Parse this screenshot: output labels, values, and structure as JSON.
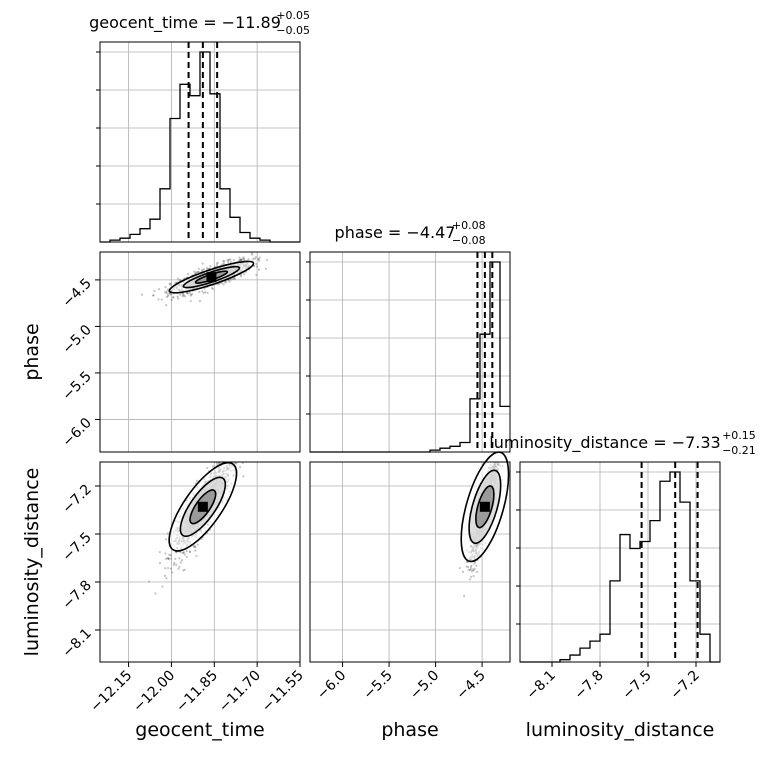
{
  "chart_data": {
    "type": "corner",
    "parameters": [
      {
        "name": "geocent_time",
        "range": [
          -12.25,
          -11.55
        ],
        "ticks": [
          "-12.15",
          "-12.00",
          "-11.85",
          "-11.70",
          "-11.55"
        ],
        "title": {
          "base": "geocent_time = −11.89",
          "sup": "+0.05",
          "sub": "−0.05"
        }
      },
      {
        "name": "phase",
        "range": [
          -6.35,
          -4.2
        ],
        "ticks": [
          "-6.0",
          "-5.5",
          "-5.0",
          "-4.5"
        ],
        "title": {
          "base": "phase = −4.47",
          "sup": "+0.08",
          "sub": "−0.08"
        }
      },
      {
        "name": "luminosity_distance",
        "range": [
          -8.3,
          -7.05
        ],
        "ticks": [
          "-8.1",
          "-7.8",
          "-7.5",
          "-7.2"
        ],
        "title": {
          "base": "luminosity_distance = −7.33",
          "sup": "+0.15",
          "sub": "−0.21"
        }
      }
    ],
    "tick_labels": {
      "geocent_time": [
        "−12.15",
        "−12.00",
        "−11.85",
        "−11.70",
        "−11.55"
      ],
      "phase": [
        "−6.0",
        "−5.5",
        "−5.0",
        "−4.5"
      ],
      "luminosity_distance": [
        "−8.1",
        "−7.8",
        "−7.5",
        "−7.2"
      ]
    },
    "axis_labels": {
      "x": [
        "geocent_time",
        "phase",
        "luminosity_distance"
      ],
      "y": [
        "phase",
        "luminosity_distance"
      ]
    },
    "histograms": [
      {
        "param": "geocent_time",
        "edges_start": -12.25,
        "bin_width": 0.035,
        "counts": [
          0,
          1,
          2,
          4,
          7,
          12,
          28,
          65,
          83,
          77,
          100,
          78,
          28,
          13,
          5,
          2,
          1,
          0,
          0,
          0
        ],
        "quantiles": [
          -11.94,
          -11.89,
          -11.84
        ]
      },
      {
        "param": "phase",
        "edges_start": -6.35,
        "bin_width": 0.1075,
        "counts": [
          0,
          0,
          0,
          0,
          0,
          0,
          0,
          0,
          0,
          0,
          0,
          0,
          1,
          2,
          3,
          5,
          28,
          62,
          100,
          24
        ],
        "quantiles": [
          -4.55,
          -4.47,
          -4.39
        ]
      },
      {
        "param": "luminosity_distance",
        "edges_start": -8.3,
        "bin_width": 0.0625,
        "counts": [
          0,
          0,
          0,
          0,
          1,
          3,
          6,
          9,
          12,
          35,
          55,
          49,
          52,
          61,
          78,
          82,
          69,
          35,
          12,
          0
        ],
        "quantiles": [
          -7.54,
          -7.33,
          -7.19
        ]
      }
    ],
    "scatter_2d": [
      {
        "x": "geocent_time",
        "y": "phase",
        "center": [
          -11.86,
          -4.47
        ],
        "spread": [
          0.07,
          0.09
        ],
        "corr": 0.8
      },
      {
        "x": "geocent_time",
        "y": "luminosity_distance",
        "center": [
          -11.89,
          -7.33
        ],
        "spread": [
          0.05,
          0.15
        ],
        "corr": 0.85
      },
      {
        "x": "phase",
        "y": "luminosity_distance",
        "center": [
          -4.47,
          -7.33
        ],
        "spread": [
          0.08,
          0.18
        ],
        "corr": 0.9
      }
    ],
    "grid": true
  }
}
